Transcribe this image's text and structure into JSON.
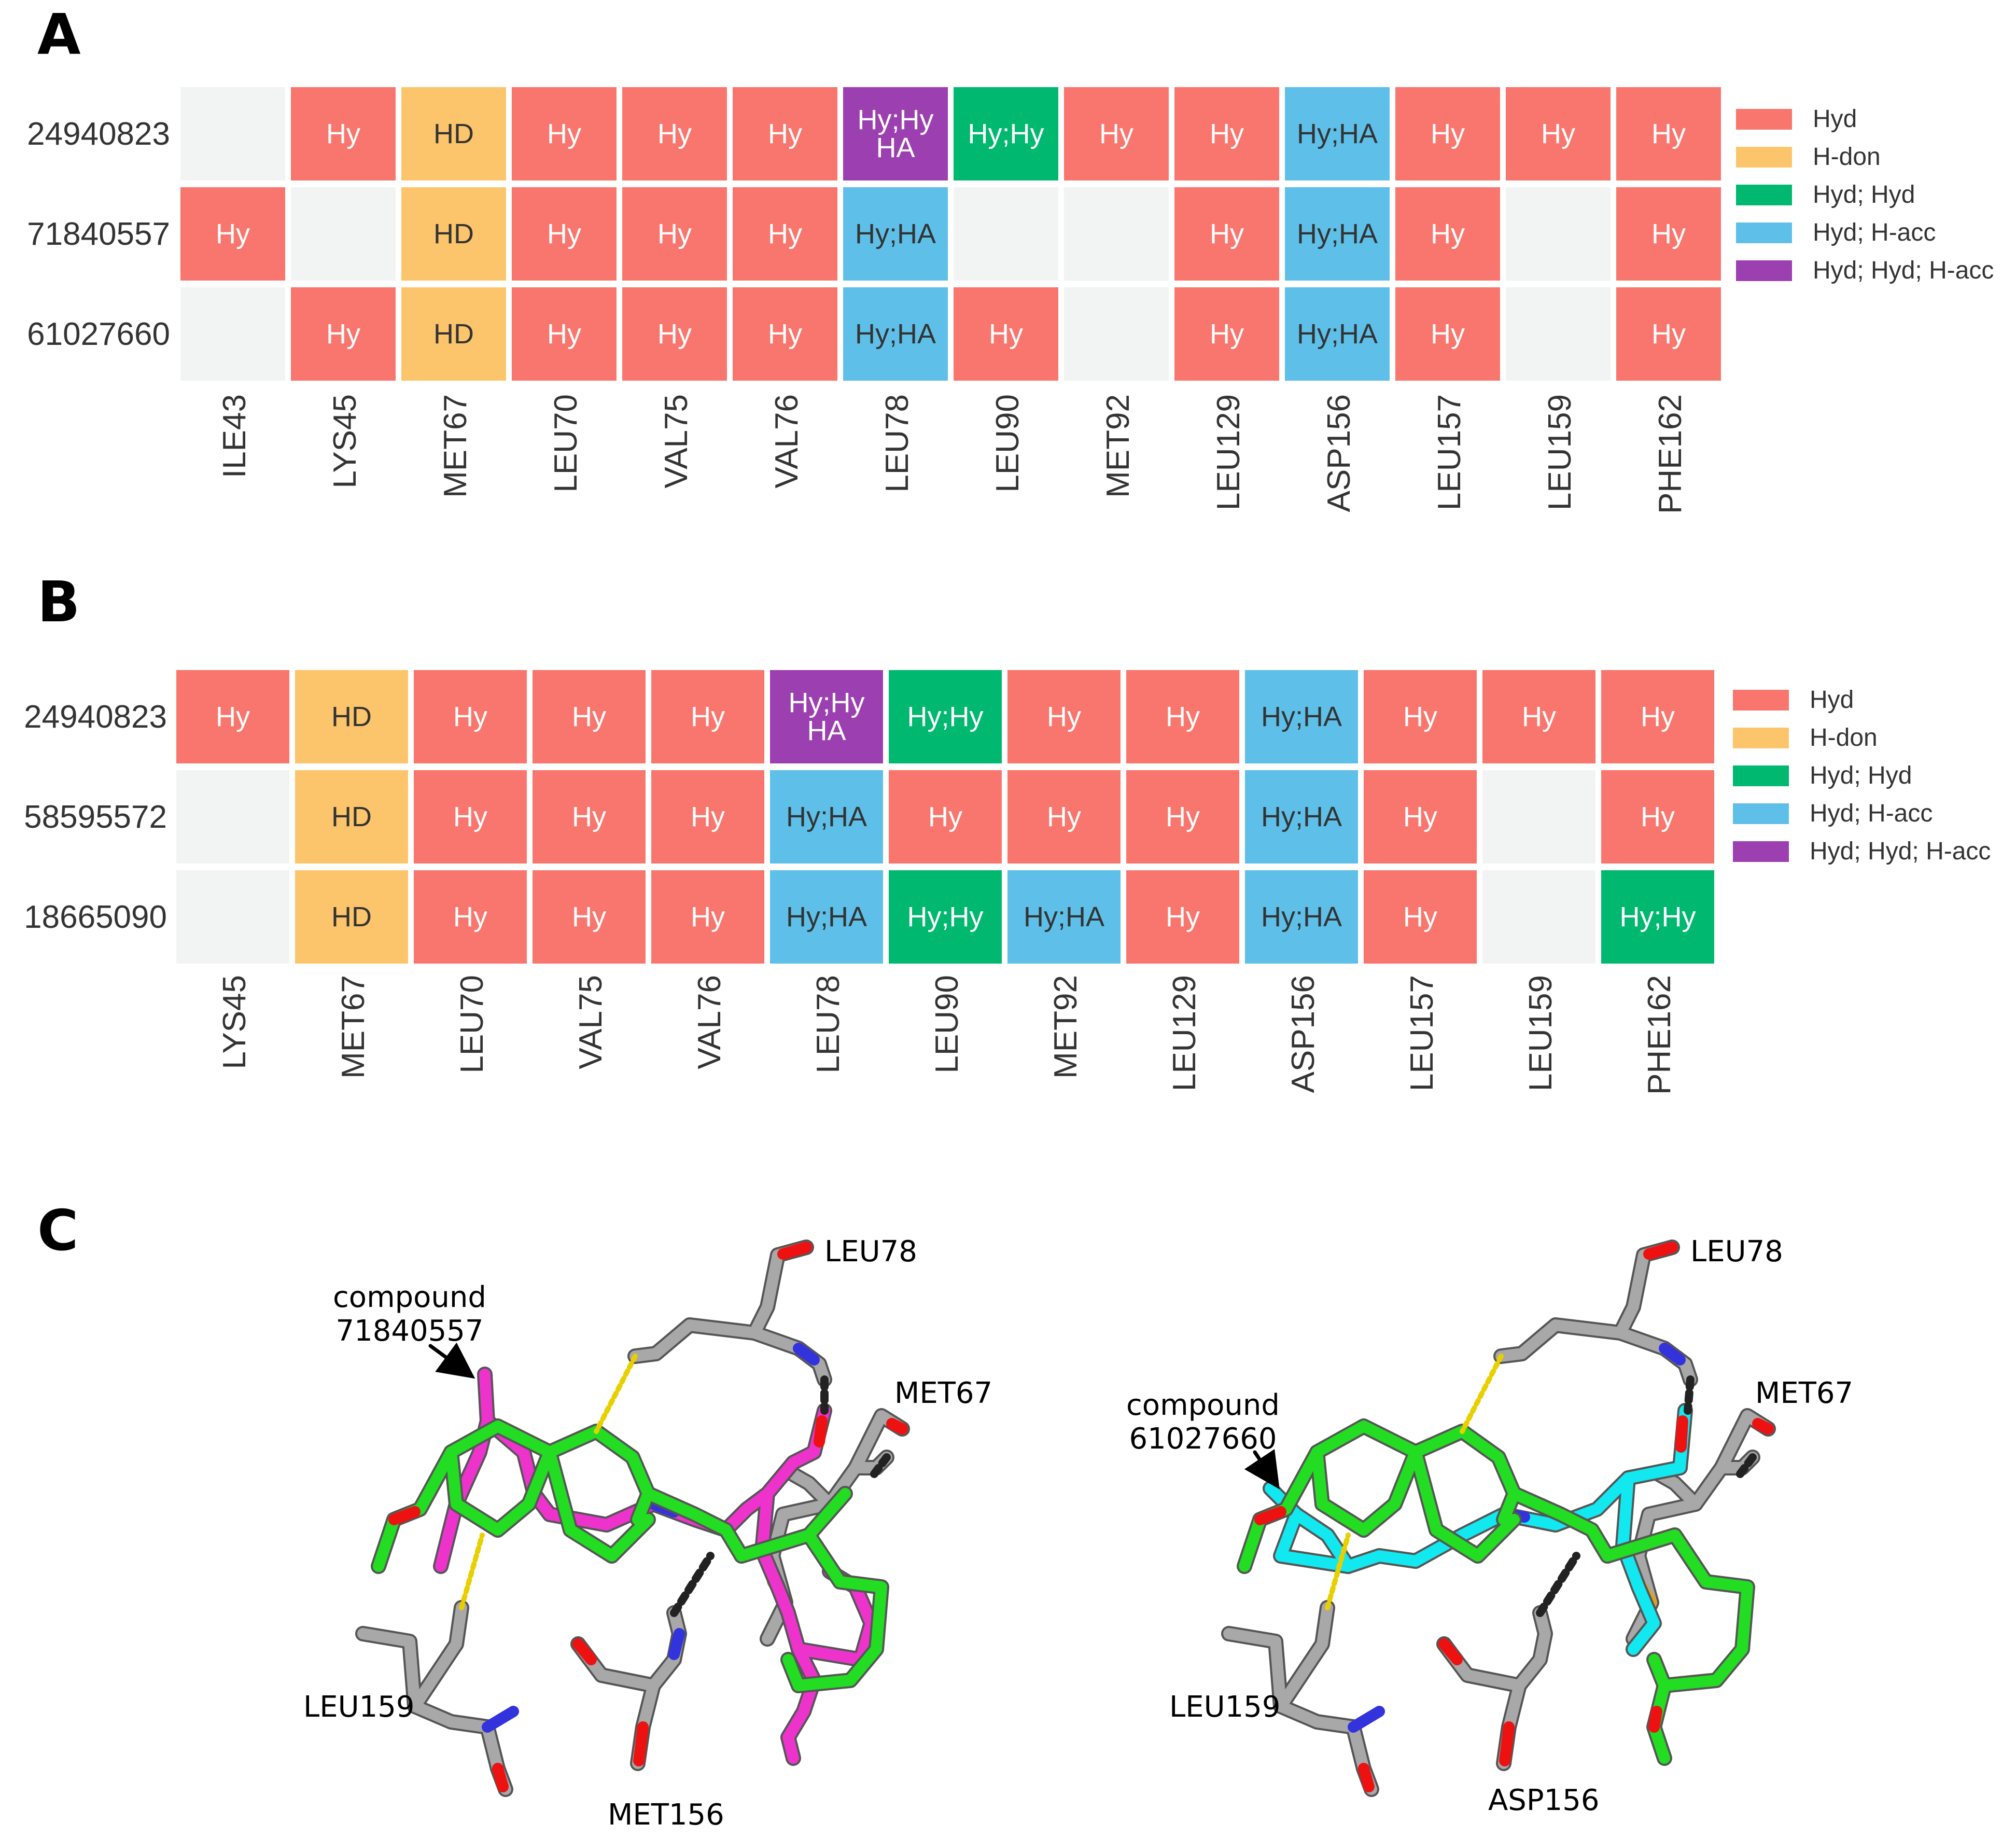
{
  "panels": {
    "a": {
      "label": "A",
      "rows": [
        "24940823",
        "71840557",
        "61027660"
      ],
      "columns": [
        "ILE43",
        "LYS45",
        "MET67",
        "LEU70",
        "VAL75",
        "VAL76",
        "LEU78",
        "LEU90",
        "MET92",
        "LEU129",
        "ASP156",
        "LEU157",
        "LEU159",
        "PHE162"
      ],
      "cells": [
        [
          "",
          "Hy",
          "HD",
          "Hy",
          "Hy",
          "Hy",
          "Hy;Hy HA",
          "Hy;Hy",
          "Hy",
          "Hy",
          "Hy;HA",
          "Hy",
          "Hy",
          "Hy"
        ],
        [
          "Hy",
          "",
          "HD",
          "Hy",
          "Hy",
          "Hy",
          "Hy;HA",
          "",
          "",
          "Hy",
          "Hy;HA",
          "Hy",
          "",
          "Hy"
        ],
        [
          "",
          "Hy",
          "HD",
          "Hy",
          "Hy",
          "Hy",
          "Hy;HA",
          "Hy",
          "",
          "Hy",
          "Hy;HA",
          "Hy",
          "",
          "Hy"
        ]
      ],
      "types": [
        [
          "none",
          "hyd",
          "hdon",
          "hyd",
          "hyd",
          "hyd",
          "hhh",
          "hh",
          "hyd",
          "hyd",
          "hacc",
          "hyd",
          "hyd",
          "hyd"
        ],
        [
          "hyd",
          "none",
          "hdon",
          "hyd",
          "hyd",
          "hyd",
          "hacc",
          "none",
          "none",
          "hyd",
          "hacc",
          "hyd",
          "none",
          "hyd"
        ],
        [
          "none",
          "hyd",
          "hdon",
          "hyd",
          "hyd",
          "hyd",
          "hacc",
          "hyd",
          "none",
          "hyd",
          "hacc",
          "hyd",
          "none",
          "hyd"
        ]
      ]
    },
    "b": {
      "label": "B",
      "rows": [
        "24940823",
        "58595572",
        "18665090"
      ],
      "columns": [
        "LYS45",
        "MET67",
        "LEU70",
        "VAL75",
        "VAL76",
        "LEU78",
        "LEU90",
        "MET92",
        "LEU129",
        "ASP156",
        "LEU157",
        "LEU159",
        "PHE162"
      ],
      "cells": [
        [
          "Hy",
          "HD",
          "Hy",
          "Hy",
          "Hy",
          "Hy;Hy HA",
          "Hy;Hy",
          "Hy",
          "Hy",
          "Hy;HA",
          "Hy",
          "Hy",
          "Hy"
        ],
        [
          "",
          "HD",
          "Hy",
          "Hy",
          "Hy",
          "Hy;HA",
          "Hy",
          "Hy",
          "Hy",
          "Hy;HA",
          "Hy",
          "",
          "Hy"
        ],
        [
          "",
          "HD",
          "Hy",
          "Hy",
          "Hy",
          "Hy;HA",
          "Hy;Hy",
          "Hy;HA",
          "Hy",
          "Hy;HA",
          "Hy",
          "",
          "Hy;Hy"
        ]
      ],
      "types": [
        [
          "hyd",
          "hdon",
          "hyd",
          "hyd",
          "hyd",
          "hhh",
          "hh",
          "hyd",
          "hyd",
          "hacc",
          "hyd",
          "hyd",
          "hyd"
        ],
        [
          "none",
          "hdon",
          "hyd",
          "hyd",
          "hyd",
          "hacc",
          "hyd",
          "hyd",
          "hyd",
          "hacc",
          "hyd",
          "none",
          "hyd"
        ],
        [
          "none",
          "hdon",
          "hyd",
          "hyd",
          "hyd",
          "hacc",
          "hh",
          "hacc",
          "hyd",
          "hacc",
          "hyd",
          "none",
          "hh"
        ]
      ]
    },
    "c": {
      "label": "C",
      "left": {
        "compound_line1": "compound",
        "compound_line2": "71840557",
        "leu78": "LEU78",
        "met67": "MET67",
        "leu159": "LEU159",
        "res156": "MET156"
      },
      "right": {
        "compound_line1": "compound",
        "compound_line2": "61027660",
        "leu78": "LEU78",
        "met67": "MET67",
        "leu159": "LEU159",
        "res156": "ASP156"
      }
    }
  },
  "legend": [
    {
      "type": "hyd",
      "label": "Hyd"
    },
    {
      "type": "hdon",
      "label": "H-don"
    },
    {
      "type": "hh",
      "label": "Hyd; Hyd"
    },
    {
      "type": "hacc",
      "label": "Hyd; H-acc"
    },
    {
      "type": "hhh",
      "label": "Hyd; Hyd; H-acc"
    }
  ],
  "colors": {
    "hyd": "#f8766d",
    "hdon": "#fdc56b",
    "hh": "#00b86f",
    "hacc": "#5ec0e9",
    "hhh": "#9c3fb0",
    "none": "#f2f4f3",
    "carbon_grey": "#9e9e9e",
    "ligand_green": "#22dd22",
    "ligand_magenta": "#ee33cc",
    "ligand_cyan": "#11e8f0",
    "oxygen": "#ee1111",
    "nitrogen": "#3333dd",
    "sulfur": "#e0a020"
  }
}
